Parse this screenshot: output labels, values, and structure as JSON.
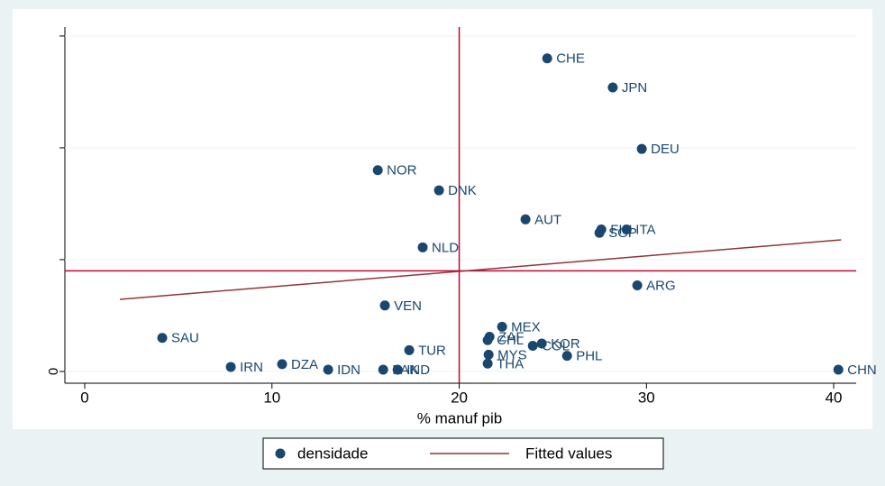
{
  "chart_data": {
    "type": "scatter",
    "xlabel": "% manuf pib",
    "xlim": [
      -1.06,
      41.2
    ],
    "xticks": [
      0,
      10,
      20,
      30,
      40
    ],
    "ylim": [
      -0.105,
      3.08
    ],
    "yticks": [
      0
    ],
    "ytick_marks": [
      1,
      2,
      3
    ],
    "grid": true,
    "xline": 20,
    "yline": 0.9,
    "refline_color": "#c10534",
    "series": [
      {
        "name": "densidade",
        "color": "#1a476f",
        "labels": [
          "CHE",
          "JPN",
          "DEU",
          "NOR",
          "DNK",
          "AUT",
          "FIN",
          "ITA",
          "SGP",
          "NLD",
          "ARG",
          "VEN",
          "MEX",
          "ZAF",
          "CHL",
          "SAU",
          "KOR",
          "COL",
          "TUR",
          "MYS",
          "PHL",
          "THA",
          "DZA",
          "IRN",
          "IDN",
          "PAK",
          "IND",
          "CHN"
        ],
        "x": [
          24.7,
          28.2,
          29.75,
          15.65,
          18.92,
          23.54,
          27.59,
          28.94,
          27.49,
          18.05,
          29.51,
          16.03,
          22.29,
          21.62,
          21.52,
          4.14,
          24.41,
          23.93,
          17.33,
          21.57,
          25.76,
          21.52,
          10.54,
          7.8,
          13.0,
          15.94,
          16.71,
          40.25
        ],
        "values": [
          2.8,
          2.54,
          1.99,
          1.8,
          1.62,
          1.36,
          1.27,
          1.27,
          1.24,
          1.11,
          0.77,
          0.59,
          0.4,
          0.31,
          0.28,
          0.3,
          0.25,
          0.23,
          0.19,
          0.15,
          0.14,
          0.07,
          0.065,
          0.04,
          0.016,
          0.016,
          0.016,
          0.016
        ]
      },
      {
        "name": "Fitted values",
        "color": "#90353b",
        "x": [
          1.88,
          40.4
        ],
        "values": [
          0.645,
          1.177
        ]
      }
    ]
  }
}
